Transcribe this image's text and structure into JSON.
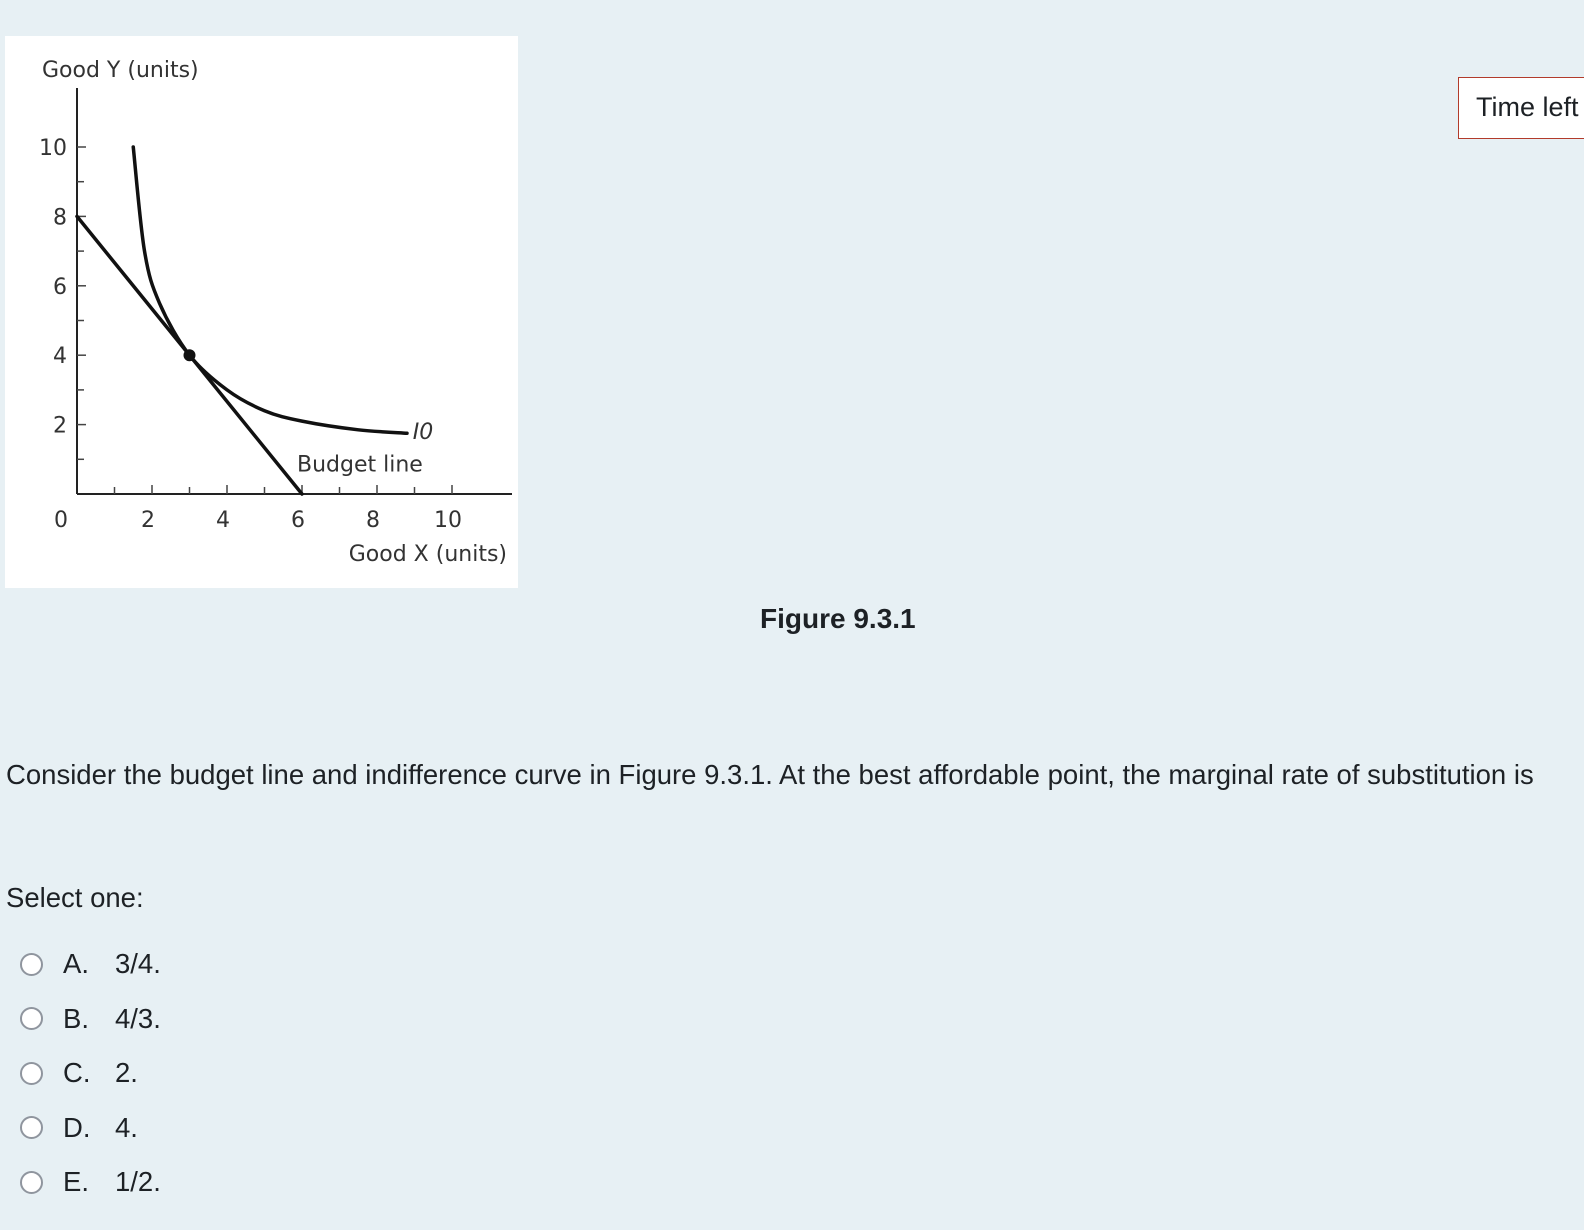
{
  "timer": {
    "label": "Time left"
  },
  "figure": {
    "caption": "Figure 9.3.1"
  },
  "question": {
    "text": "Consider the budget line and indifference curve in Figure 9.3.1. At the best affordable point, the marginal rate of substitution is",
    "prompt": "Select one:",
    "options": [
      {
        "letter": "A.",
        "text": "3/4."
      },
      {
        "letter": "B.",
        "text": "4/3."
      },
      {
        "letter": "C.",
        "text": "2."
      },
      {
        "letter": "D.",
        "text": "4."
      },
      {
        "letter": "E.",
        "text": "1/2."
      }
    ]
  },
  "chart_data": {
    "type": "line",
    "xlabel": "Good X (units)",
    "ylabel": "Good Y (units)",
    "xlim": [
      0,
      12
    ],
    "ylim": [
      0,
      12
    ],
    "x_ticks": [
      "0",
      "2",
      "4",
      "6",
      "8",
      "10"
    ],
    "y_ticks": [
      "2",
      "4",
      "6",
      "8",
      "10"
    ],
    "budget_line": {
      "label": "Budget line",
      "points": [
        [
          0,
          8
        ],
        [
          6,
          0
        ]
      ]
    },
    "indifference_curve": {
      "label": "I0",
      "points": [
        [
          1.5,
          10
        ],
        [
          1.8,
          7
        ],
        [
          2.2,
          5.5
        ],
        [
          3,
          4
        ],
        [
          4,
          3
        ],
        [
          5,
          2.4
        ],
        [
          6,
          2.1
        ],
        [
          7.5,
          1.85
        ],
        [
          8.8,
          1.75
        ]
      ]
    },
    "best_affordable_point": [
      3,
      4
    ],
    "colors": {
      "lines": "#111111"
    }
  }
}
